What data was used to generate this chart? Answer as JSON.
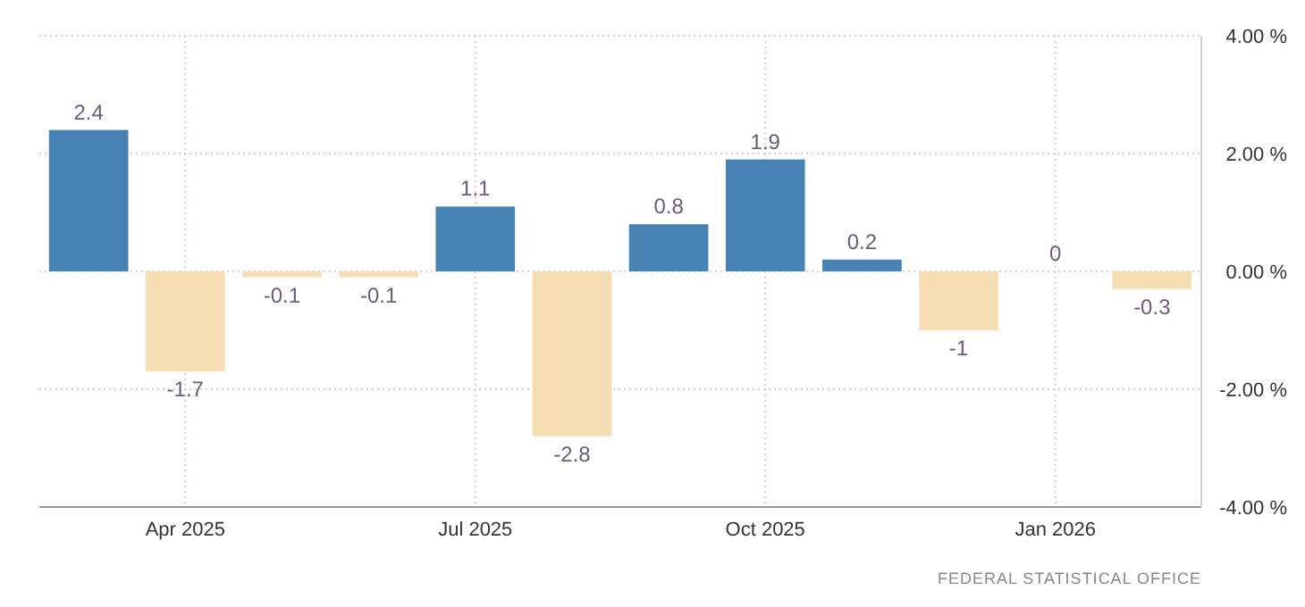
{
  "chart_data": {
    "type": "bar",
    "categories": [
      null,
      "Apr 2025",
      null,
      null,
      "Jul 2025",
      null,
      null,
      "Oct 2025",
      null,
      null,
      "Jan 2026",
      null
    ],
    "values": [
      2.4,
      -1.7,
      -0.1,
      -0.1,
      1.1,
      -2.8,
      0.8,
      1.9,
      0.2,
      -1,
      0,
      -0.3
    ],
    "colors": [
      "#4682b4",
      "#f5deb3",
      "#f5deb3",
      "#f5deb3",
      "#4682b4",
      "#f5deb3",
      "#4682b4",
      "#4682b4",
      "#4682b4",
      "#f5deb3",
      "#4682b4",
      "#f5deb3"
    ],
    "ylim": [
      -4,
      4
    ],
    "yticks": [
      {
        "value": -4,
        "label": "-4.00 %"
      },
      {
        "value": -2,
        "label": "-2.00 %"
      },
      {
        "value": 0,
        "label": "0.00 %"
      },
      {
        "value": 2,
        "label": "2.00 %"
      },
      {
        "value": 4,
        "label": "4.00 %"
      }
    ],
    "grid": true,
    "data_labels": true,
    "annotations": [
      "FEDERAL STATISTICAL OFFICE"
    ]
  }
}
